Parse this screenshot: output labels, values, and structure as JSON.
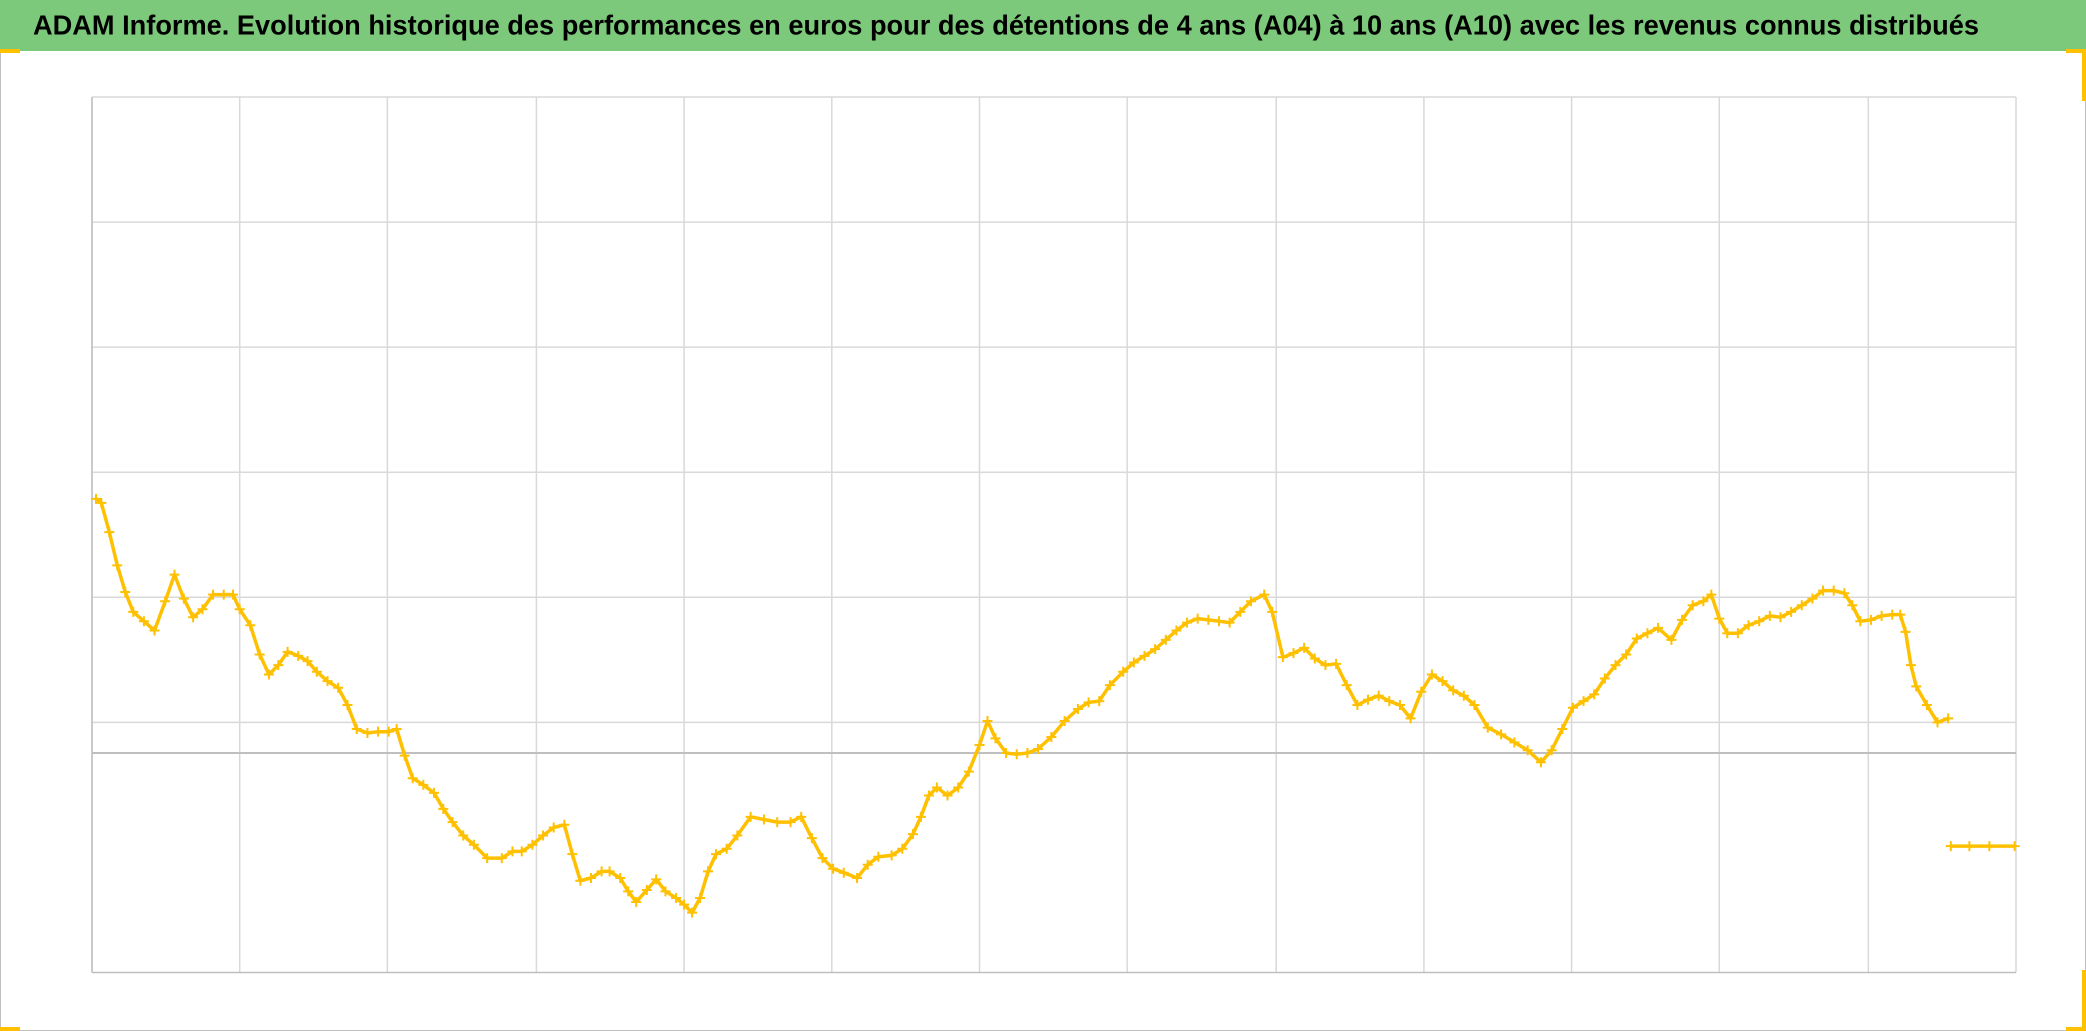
{
  "chart_data": {
    "type": "line",
    "title": "ADAM Informe. Evolution historique des performances en euros pour des détentions de 4 ans (A04) à 10 ans (A10) avec les revenus connus distribués",
    "xlim": [
      0,
      1446
    ],
    "xticks": [
      0,
      111,
      222,
      334,
      445,
      556,
      667,
      778,
      890,
      1001,
      1112,
      1223,
      1335,
      1446
    ],
    "ylim": [
      -165,
      493
    ],
    "yticks": [
      493,
      399,
      305,
      211,
      117,
      23
    ],
    "grid": true,
    "zero_line": true,
    "marker": "plus",
    "series": [
      {
        "color": "#ffc000",
        "x": [
          3,
          7,
          13,
          19,
          25,
          31,
          39,
          47,
          55,
          62,
          69,
          76,
          83,
          91,
          99,
          106,
          111,
          119,
          126,
          133,
          140,
          147,
          155,
          162,
          169,
          177,
          185,
          192,
          199,
          207,
          215,
          223,
          229,
          235,
          241,
          249,
          257,
          264,
          271,
          279,
          287,
          297,
          308,
          316,
          323,
          331,
          339,
          347,
          355,
          361,
          367,
          375,
          383,
          389,
          397,
          403,
          409,
          417,
          424,
          431,
          439,
          445,
          451,
          457,
          463,
          469,
          477,
          485,
          495,
          505,
          515,
          525,
          533,
          541,
          549,
          557,
          565,
          575,
          583,
          591,
          601,
          609,
          617,
          623,
          629,
          635,
          643,
          651,
          659,
          667,
          673,
          679,
          687,
          695,
          703,
          711,
          721,
          731,
          741,
          749,
          757,
          765,
          775,
          783,
          791,
          799,
          807,
          815,
          823,
          831,
          839,
          847,
          855,
          863,
          871,
          881,
          887,
          895,
          903,
          911,
          919,
          927,
          935,
          943,
          951,
          959,
          967,
          975,
          983,
          991,
          999,
          1007,
          1015,
          1023,
          1031,
          1039,
          1049,
          1059,
          1069,
          1079,
          1089,
          1097,
          1105,
          1113,
          1121,
          1129,
          1137,
          1145,
          1153,
          1161,
          1169,
          1177,
          1187,
          1195,
          1203,
          1211,
          1217,
          1223,
          1229,
          1237,
          1245,
          1253,
          1261,
          1269,
          1277,
          1285,
          1293,
          1301,
          1309,
          1317,
          1323,
          1329,
          1337,
          1345,
          1353,
          1359,
          1363,
          1367,
          1371,
          1379,
          1387,
          1395,
          null,
          1397,
          1411,
          1426,
          1445
        ],
        "values": [
          191,
          188,
          166,
          141,
          121,
          106,
          99,
          92,
          114,
          134,
          116,
          102,
          108,
          119,
          119,
          119,
          108,
          96,
          74,
          59,
          66,
          76,
          73,
          69,
          61,
          54,
          49,
          36,
          18,
          15,
          16,
          16,
          18,
          -2,
          -19,
          -24,
          -30,
          -42,
          -52,
          -62,
          -69,
          -79,
          -79,
          -74,
          -74,
          -69,
          -62,
          -56,
          -54,
          -76,
          -96,
          -94,
          -89,
          -89,
          -94,
          -104,
          -112,
          -103,
          -95,
          -104,
          -109,
          -114,
          -120,
          -109,
          -89,
          -76,
          -72,
          -62,
          -48,
          -50,
          -52,
          -52,
          -48,
          -64,
          -79,
          -87,
          -90,
          -94,
          -84,
          -78,
          -77,
          -72,
          -61,
          -48,
          -32,
          -26,
          -32,
          -26,
          -14,
          6,
          24,
          11,
          0,
          -1,
          0,
          3,
          12,
          24,
          33,
          38,
          39,
          51,
          61,
          68,
          73,
          78,
          85,
          92,
          98,
          101,
          100,
          99,
          98,
          106,
          114,
          119,
          106,
          72,
          75,
          79,
          71,
          66,
          67,
          51,
          36,
          40,
          43,
          39,
          36,
          26,
          46,
          59,
          54,
          47,
          43,
          36,
          19,
          14,
          8,
          2,
          -7,
          2,
          18,
          34,
          39,
          44,
          56,
          66,
          74,
          86,
          90,
          94,
          85,
          100,
          111,
          114,
          119,
          101,
          90,
          90,
          96,
          99,
          103,
          102,
          106,
          111,
          116,
          122,
          122,
          120,
          111,
          99,
          100,
          103,
          104,
          104,
          91,
          66,
          50,
          36,
          23,
          26,
          null,
          -70,
          -70,
          -70,
          -70
        ]
      }
    ]
  }
}
